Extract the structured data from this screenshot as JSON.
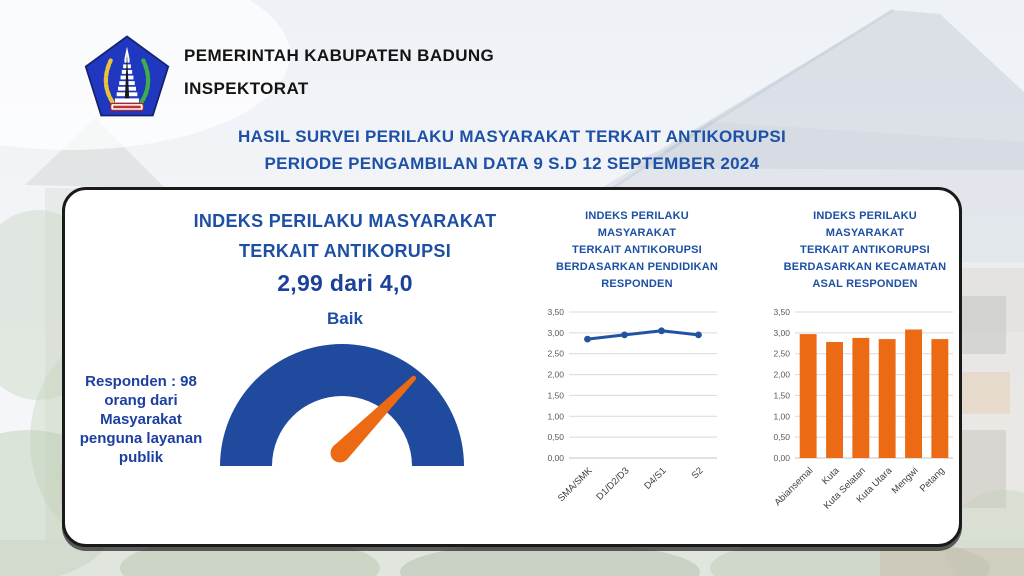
{
  "header": {
    "logo": "badung-regency-seal-icon",
    "org_name": "PEMERINTAH KABUPATEN BADUNG",
    "org_unit": "INSPEKTORAT"
  },
  "title": {
    "line1": "HASIL SURVEI PERILAKU MASYARAKAT TERKAIT ANTIKORUPSI",
    "line2": "PERIODE PENGAMBILAN DATA 9 S.D 12 SEPTEMBER 2024"
  },
  "summary": {
    "heading_line1": "INDEKS PERILAKU MASYARAKAT",
    "heading_line2": "TERKAIT ANTIKORUPSI",
    "respondents_note": "Responden : 98 orang dari Masyarakat penguna layanan publik"
  },
  "colors": {
    "title_blue": "#1d51a6",
    "heading_blue": "#1d4fa3",
    "gauge_blue": "#1f4a9e",
    "accent_orange": "#ec6a13",
    "line_blue": "#2253a3",
    "axis_text": "#595959",
    "gridline": "#d9d9d9",
    "category_text": "#404040"
  },
  "chart_data": [
    {
      "type": "gauge",
      "title": "INDEKS PERILAKU MASYARAKAT TERKAIT ANTIKORUPSI",
      "value": 2.99,
      "max": 4.0,
      "value_label": "2,99 dari 4,0",
      "rating": "Baik"
    },
    {
      "type": "line",
      "title": "INDEKS PERILAKU MASYARAKAT TERKAIT ANTIKORUPSI BERDASARKAN PENDIDIKAN RESPONDEN",
      "title_lines": [
        "INDEKS PERILAKU",
        "MASYARAKAT",
        "TERKAIT ANTIKORUPSI",
        "BERDASARKAN PENDIDIKAN",
        "RESPONDEN"
      ],
      "categories": [
        "SMA/SMK",
        "D1/D2/D3",
        "D4/S1",
        "S2"
      ],
      "values": [
        2.85,
        2.95,
        3.05,
        2.95
      ],
      "ylim": [
        0,
        3.5
      ],
      "ytick_step": 0.5,
      "ytick_labels": [
        "0,00",
        "0,50",
        "1,00",
        "1,50",
        "2,00",
        "2,50",
        "3,00",
        "3,50"
      ],
      "grid": true,
      "legend": false
    },
    {
      "type": "bar",
      "title": "INDEKS PERILAKU MASYARAKAT TERKAIT ANTIKORUPSI BERDASARKAN KECAMATAN ASAL RESPONDEN",
      "title_lines": [
        "INDEKS PERILAKU",
        "MASYARAKAT",
        "TERKAIT ANTIKORUPSI",
        "BERDASARKAN KECAMATAN",
        "ASAL RESPONDEN"
      ],
      "categories": [
        "Abiansemal",
        "Kuta",
        "Kuta Selatan",
        "Kuta Utara",
        "Mengwi",
        "Petang"
      ],
      "values": [
        2.97,
        2.78,
        2.88,
        2.85,
        3.08,
        2.85
      ],
      "ylim": [
        0,
        3.5
      ],
      "ytick_step": 0.5,
      "ytick_labels": [
        "0,00",
        "0,50",
        "1,00",
        "1,50",
        "2,00",
        "2,50",
        "3,00",
        "3,50"
      ],
      "grid": true,
      "legend": false
    }
  ]
}
